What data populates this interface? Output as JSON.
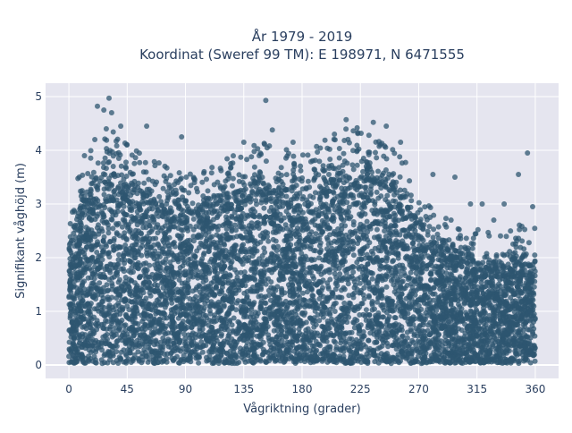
{
  "chart_data": {
    "type": "scatter",
    "title_lines": [
      "År 1979 - 2019",
      "Koordinat (Sweref 99 TM): E 198971, N 6471555"
    ],
    "xlabel": "Vågriktning (grader)",
    "ylabel": "Signifikant våghöjd (m)",
    "xlim": [
      -18,
      378
    ],
    "ylim": [
      -0.25,
      5.25
    ],
    "xticks": [
      0,
      45,
      90,
      135,
      180,
      225,
      270,
      315,
      360
    ],
    "yticks": [
      0,
      1,
      2,
      3,
      4,
      5
    ],
    "grid": true,
    "legend": "none",
    "colors": {
      "marker": "#2e5570",
      "plot_bg": "#e5e5ef",
      "grid": "#ffffff"
    },
    "series": [
      {
        "upper_envelope": {
          "x": [
            0,
            5,
            10,
            20,
            30,
            40,
            50,
            60,
            75,
            90,
            105,
            120,
            135,
            150,
            165,
            180,
            195,
            210,
            225,
            240,
            255,
            270,
            285,
            300,
            315,
            330,
            345,
            360
          ],
          "y": [
            2.3,
            2.8,
            3.2,
            3.6,
            3.9,
            3.7,
            3.5,
            3.3,
            3.2,
            3.0,
            3.1,
            3.3,
            3.5,
            3.6,
            3.5,
            3.4,
            3.6,
            3.9,
            3.9,
            3.7,
            3.4,
            2.9,
            2.4,
            2.1,
            2.0,
            2.0,
            2.1,
            2.0
          ]
        },
        "outliers": [
          [
            31,
            4.97
          ],
          [
            152,
            4.93
          ],
          [
            22,
            4.82
          ],
          [
            27,
            4.75
          ],
          [
            33,
            4.7
          ],
          [
            214,
            4.57
          ],
          [
            235,
            4.52
          ],
          [
            40,
            4.45
          ],
          [
            60,
            4.45
          ],
          [
            157,
            4.38
          ],
          [
            223,
            4.33
          ],
          [
            245,
            4.45
          ],
          [
            20,
            4.2
          ],
          [
            87,
            4.25
          ],
          [
            135,
            4.15
          ],
          [
            173,
            4.15
          ],
          [
            205,
            4.3
          ],
          [
            256,
            4.15
          ],
          [
            281,
            3.55
          ],
          [
            298,
            3.5
          ],
          [
            310,
            3.0
          ],
          [
            319,
            3.0
          ],
          [
            336,
            3.0
          ],
          [
            347,
            3.55
          ],
          [
            354,
            3.95
          ],
          [
            358,
            2.95
          ],
          [
            295,
            2.7
          ],
          [
            328,
            2.7
          ],
          [
            8,
            3.5
          ],
          [
            12,
            3.9
          ]
        ]
      }
    ]
  }
}
